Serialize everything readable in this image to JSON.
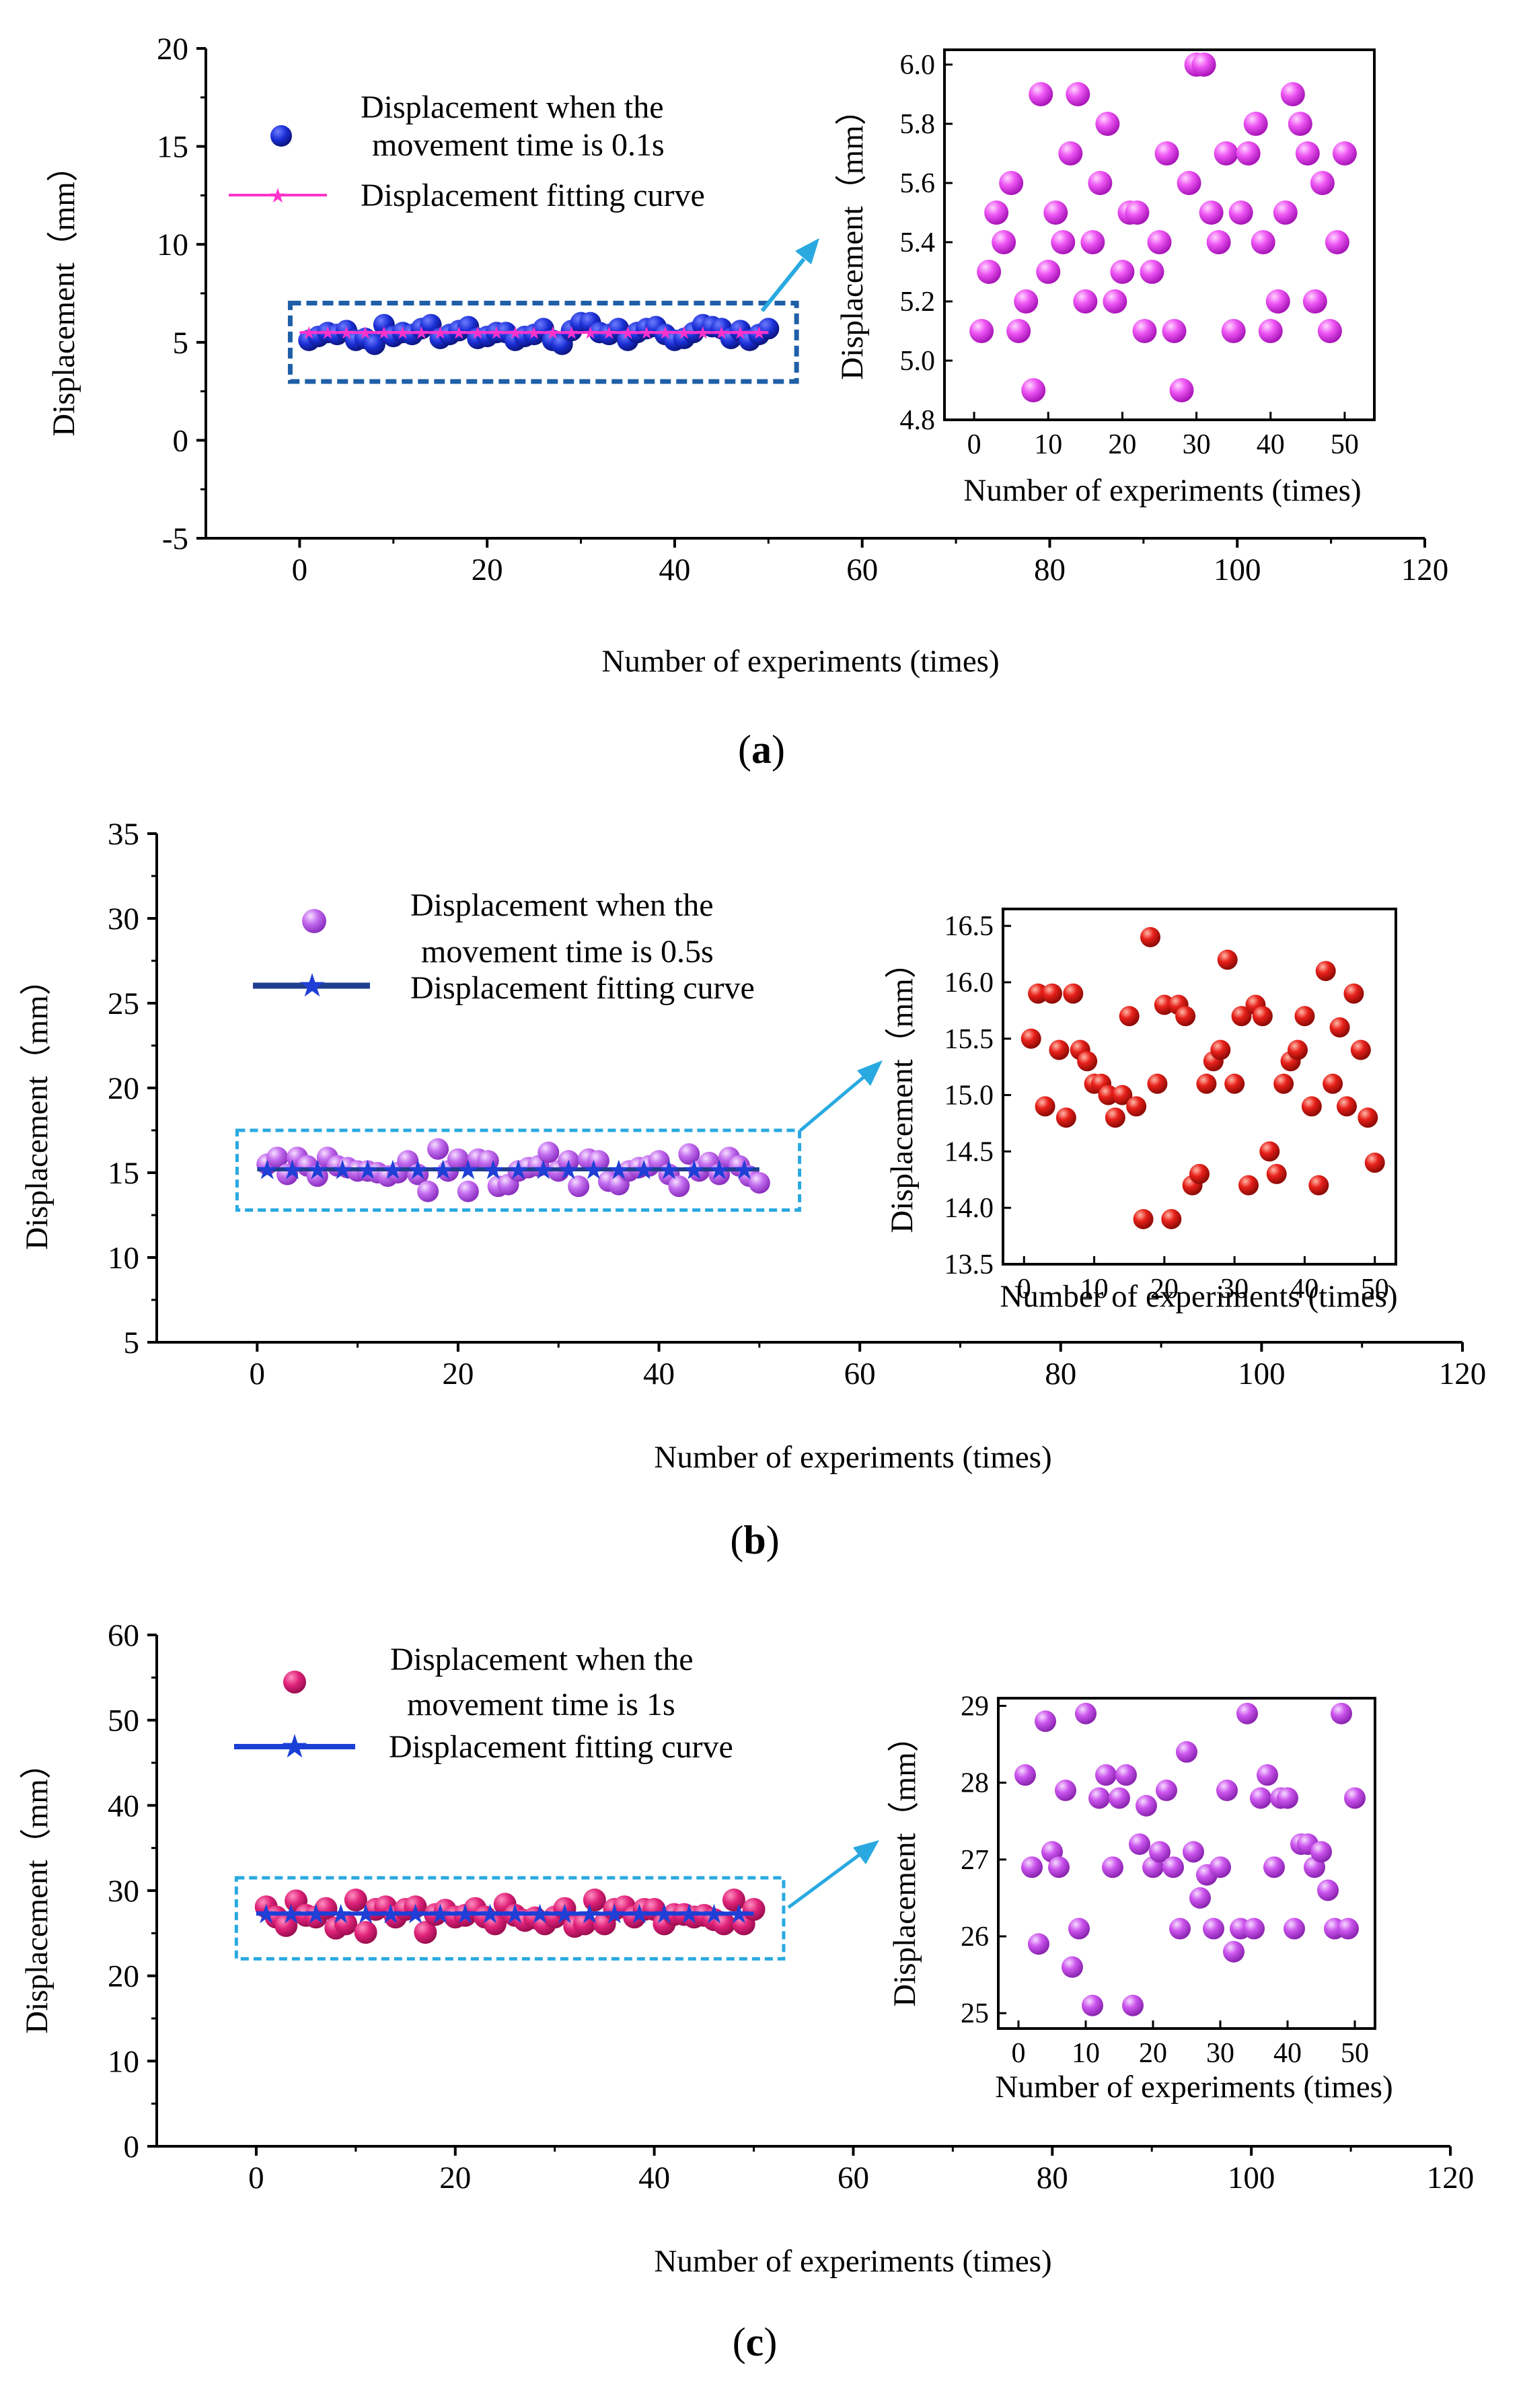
{
  "chart_data": [
    {
      "id": "a",
      "type": "scatter",
      "panel_label": [
        "(",
        "a",
        ")"
      ],
      "xlabel": "Number of experiments (times)",
      "ylabel": "Displacement（mm）",
      "xlim": [
        -10,
        120
      ],
      "ylim": [
        -5,
        20
      ],
      "xticks": [
        0,
        20,
        40,
        60,
        80,
        100,
        120
      ],
      "yticks": [
        -5,
        0,
        5,
        10,
        15,
        20
      ],
      "legend": {
        "points_label_lines": [
          "Displacement when the",
          "movement time is 0.1s"
        ],
        "fit_label": "Displacement fitting curve"
      },
      "colors": {
        "points": "#1a2fd6",
        "fit": "#ff33cc",
        "box": "#1f5fa8",
        "arrow": "#29a9e0",
        "inset_points": "#e83ef0"
      },
      "fit": {
        "x0": 0,
        "x1": 50,
        "y": 5.5
      },
      "box": {
        "x0": -1,
        "x1": 53,
        "y0": 3,
        "y1": 7
      },
      "series": [
        {
          "name": "Displacement when the movement time is 0.1s",
          "x": [
            1,
            2,
            3,
            4,
            5,
            6,
            7,
            8,
            9,
            10,
            11,
            12,
            13,
            14,
            15,
            16,
            17,
            18,
            19,
            20,
            21,
            22,
            23,
            24,
            25,
            26,
            27,
            28,
            29,
            30,
            31,
            32,
            33,
            34,
            35,
            36,
            37,
            38,
            39,
            40,
            41,
            42,
            43,
            44,
            45,
            46,
            47,
            48,
            49,
            50
          ],
          "y": [
            5.1,
            5.3,
            5.5,
            5.4,
            5.6,
            5.1,
            5.2,
            4.9,
            5.9,
            5.3,
            5.5,
            5.4,
            5.7,
            5.9,
            5.2,
            5.4,
            5.6,
            5.8,
            5.2,
            5.3,
            5.5,
            5.5,
            5.1,
            5.3,
            5.4,
            5.7,
            5.1,
            4.9,
            5.6,
            6.0,
            6.0,
            5.5,
            5.4,
            5.7,
            5.1,
            5.5,
            5.7,
            5.8,
            5.4,
            5.1,
            5.2,
            5.5,
            5.9,
            5.8,
            5.7,
            5.2,
            5.6,
            5.1,
            5.4,
            5.7
          ]
        }
      ],
      "inset": {
        "xlabel": "Number of experiments (times)",
        "ylabel": "Displacement（mm）",
        "xlim": [
          -4,
          54
        ],
        "ylim": [
          4.8,
          6.05
        ],
        "xticks": [
          0,
          10,
          20,
          30,
          40,
          50
        ],
        "yticks": [
          "4.8",
          "5.0",
          "5.2",
          "5.4",
          "5.6",
          "5.8",
          "6.0"
        ]
      }
    },
    {
      "id": "b",
      "type": "scatter",
      "panel_label": [
        "(",
        "b",
        ")"
      ],
      "xlabel": "Number of experiments (times)",
      "ylabel": "Displacement（mm）",
      "xlim": [
        -10,
        120
      ],
      "ylim": [
        5,
        35
      ],
      "xticks": [
        0,
        20,
        40,
        60,
        80,
        100,
        120
      ],
      "yticks": [
        5,
        10,
        15,
        20,
        25,
        30,
        35
      ],
      "legend": {
        "points_label_lines": [
          "Displacement when the",
          "movement time is 0.5s"
        ],
        "fit_label": "Displacement fitting curve"
      },
      "colors": {
        "points": "#c46ef0",
        "fit": "#1f3f8f",
        "box": "#29a9e0",
        "arrow": "#29a9e0",
        "inset_points": "#e8201a"
      },
      "fit": {
        "x0": 0,
        "x1": 50,
        "y": 15.2
      },
      "box": {
        "x0": -2,
        "x1": 54,
        "y0": 12.8,
        "y1": 17.5
      },
      "series": [
        {
          "name": "Displacement when the movement time is 0.5s",
          "x": [
            1,
            2,
            3,
            4,
            5,
            6,
            7,
            8,
            9,
            10,
            11,
            12,
            13,
            14,
            15,
            16,
            17,
            18,
            19,
            20,
            21,
            22,
            23,
            24,
            25,
            26,
            27,
            28,
            29,
            30,
            31,
            32,
            33,
            34,
            35,
            36,
            37,
            38,
            39,
            40,
            41,
            42,
            43,
            44,
            45,
            46,
            47,
            48,
            49,
            50
          ],
          "y": [
            15.5,
            15.9,
            14.9,
            15.9,
            15.4,
            14.8,
            15.9,
            15.4,
            15.3,
            15.1,
            15.1,
            15.0,
            14.8,
            15.0,
            15.7,
            14.9,
            13.9,
            16.4,
            15.1,
            15.8,
            13.9,
            15.8,
            15.7,
            14.2,
            14.3,
            15.1,
            15.3,
            15.4,
            16.2,
            15.1,
            15.7,
            14.2,
            15.8,
            15.7,
            14.5,
            14.3,
            15.1,
            15.3,
            15.4,
            15.7,
            14.9,
            14.2,
            16.1,
            15.1,
            15.6,
            14.9,
            15.9,
            15.4,
            14.8,
            14.4
          ]
        }
      ],
      "inset": {
        "xlabel": "Number of experiments (times)",
        "ylabel": "Displacement（mm）",
        "xlim": [
          -3,
          53
        ],
        "ylim": [
          13.5,
          16.65
        ],
        "xticks": [
          0,
          10,
          20,
          30,
          40,
          50
        ],
        "yticks": [
          "13.5",
          "14.0",
          "14.5",
          "15.0",
          "15.5",
          "16.0",
          "16.5"
        ]
      }
    },
    {
      "id": "c",
      "type": "scatter",
      "panel_label": [
        "(",
        "c",
        ")"
      ],
      "xlabel": "Number of experiments (times)",
      "ylabel": "Displacement（mm）",
      "xlim": [
        -10,
        120
      ],
      "ylim": [
        0,
        60
      ],
      "xticks": [
        0,
        20,
        40,
        60,
        80,
        100,
        120
      ],
      "yticks": [
        0,
        10,
        20,
        30,
        40,
        50,
        60
      ],
      "legend": {
        "points_label_lines": [
          "Displacement when the",
          "movement time is 1s"
        ],
        "fit_label": "Displacement fitting curve"
      },
      "colors": {
        "points": "#e0237a",
        "fit": "#1a3fd6",
        "box": "#29a9e0",
        "arrow": "#29a9e0",
        "inset_points": "#cc55ee"
      },
      "fit": {
        "x0": 0,
        "x1": 50,
        "y": 27.3
      },
      "box": {
        "x0": -2,
        "x1": 53,
        "y0": 22,
        "y1": 31.5
      },
      "series": [
        {
          "name": "Displacement when the movement time is 1s",
          "x": [
            1,
            2,
            3,
            4,
            5,
            6,
            7,
            8,
            9,
            10,
            11,
            12,
            13,
            14,
            15,
            16,
            17,
            18,
            19,
            20,
            21,
            22,
            23,
            24,
            25,
            26,
            27,
            28,
            29,
            30,
            31,
            32,
            33,
            34,
            35,
            36,
            37,
            38,
            39,
            40,
            41,
            42,
            43,
            44,
            45,
            46,
            47,
            48,
            49,
            50
          ],
          "y": [
            28.1,
            26.9,
            25.9,
            28.8,
            27.1,
            26.9,
            27.9,
            25.6,
            26.1,
            28.9,
            25.1,
            27.8,
            28.1,
            26.9,
            27.8,
            28.1,
            25.1,
            27.2,
            27.7,
            26.9,
            27.1,
            27.9,
            26.9,
            26.1,
            28.4,
            27.1,
            26.5,
            26.8,
            26.1,
            26.9,
            27.9,
            25.8,
            26.1,
            28.9,
            26.1,
            27.8,
            28.1,
            26.9,
            27.8,
            27.8,
            26.1,
            27.2,
            27.2,
            26.9,
            27.1,
            26.6,
            26.1,
            28.9,
            26.1,
            27.8
          ]
        }
      ],
      "inset": {
        "xlabel": "Number of experiments (times)",
        "ylabel": "Displacement（mm）",
        "xlim": [
          -3,
          53
        ],
        "ylim": [
          24.8,
          29.1
        ],
        "xticks": [
          0,
          10,
          20,
          30,
          40,
          50
        ],
        "yticks": [
          "25",
          "26",
          "27",
          "28",
          "29"
        ]
      }
    }
  ]
}
